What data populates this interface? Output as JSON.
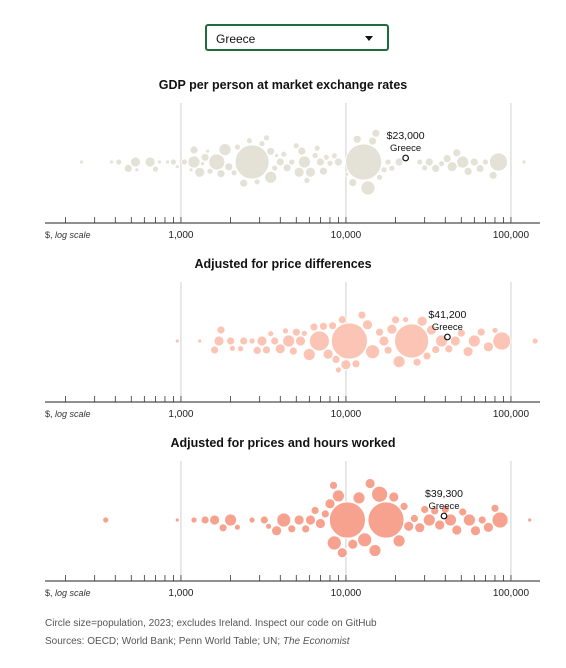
{
  "selector": {
    "value": "Greece"
  },
  "axis": {
    "unit_label": "$,",
    "scale_label": "log scale",
    "ticks": [
      "1,000",
      "10,000",
      "100,000"
    ]
  },
  "chart_data": [
    {
      "type": "scatter",
      "title": "GDP per person at market exchange rates",
      "scale": "log",
      "xlim": [
        150,
        150000
      ],
      "ticks": [
        1000,
        10000,
        100000
      ],
      "highlight": {
        "name": "Greece",
        "value": 23000,
        "label": "$23,000"
      },
      "color": "#e4e1d6",
      "bubbles": [
        [
          250,
          2
        ],
        [
          380,
          2
        ],
        [
          420,
          3
        ],
        [
          480,
          4
        ],
        [
          530,
          5
        ],
        [
          540,
          2
        ],
        [
          650,
          5
        ],
        [
          700,
          3
        ],
        [
          740,
          2
        ],
        [
          830,
          2
        ],
        [
          900,
          3
        ],
        [
          950,
          2
        ],
        [
          1050,
          3
        ],
        [
          1150,
          2
        ],
        [
          1200,
          4
        ],
        [
          1200,
          6
        ],
        [
          1300,
          5
        ],
        [
          1350,
          2
        ],
        [
          1400,
          4
        ],
        [
          1450,
          2
        ],
        [
          1500,
          3
        ],
        [
          1650,
          8
        ],
        [
          1750,
          4
        ],
        [
          1850,
          6
        ],
        [
          1950,
          4
        ],
        [
          2100,
          3
        ],
        [
          2200,
          3
        ],
        [
          2400,
          4
        ],
        [
          2700,
          17
        ],
        [
          2600,
          3
        ],
        [
          2900,
          3
        ],
        [
          3100,
          3
        ],
        [
          3300,
          3
        ],
        [
          3500,
          4
        ],
        [
          3500,
          6
        ],
        [
          3700,
          3
        ],
        [
          3800,
          2
        ],
        [
          4000,
          4
        ],
        [
          4200,
          3
        ],
        [
          4400,
          4
        ],
        [
          4700,
          3
        ],
        [
          5000,
          3
        ],
        [
          5200,
          5
        ],
        [
          5400,
          4
        ],
        [
          5600,
          6
        ],
        [
          5800,
          3
        ],
        [
          6100,
          5
        ],
        [
          6500,
          3
        ],
        [
          6700,
          3
        ],
        [
          7000,
          4
        ],
        [
          7300,
          4
        ],
        [
          7600,
          3
        ],
        [
          8000,
          3
        ],
        [
          8500,
          3
        ],
        [
          9000,
          4
        ],
        [
          10100,
          2
        ],
        [
          11000,
          4
        ],
        [
          11700,
          4
        ],
        [
          12800,
          18
        ],
        [
          13600,
          7
        ],
        [
          14500,
          4
        ],
        [
          15200,
          4
        ],
        [
          16000,
          3
        ],
        [
          17000,
          3
        ],
        [
          18000,
          3
        ],
        [
          19000,
          3
        ],
        [
          21000,
          4
        ],
        [
          28000,
          3
        ],
        [
          30000,
          3
        ],
        [
          32000,
          4
        ],
        [
          35000,
          4
        ],
        [
          38000,
          3
        ],
        [
          41000,
          4
        ],
        [
          44000,
          5
        ],
        [
          47000,
          4
        ],
        [
          51000,
          6
        ],
        [
          55000,
          4
        ],
        [
          60000,
          4
        ],
        [
          65000,
          4
        ],
        [
          70000,
          3
        ],
        [
          78000,
          4
        ],
        [
          84000,
          9
        ],
        [
          120000,
          2
        ]
      ]
    },
    {
      "type": "scatter",
      "title": "Adjusted for price differences",
      "scale": "log",
      "xlim": [
        150,
        150000
      ],
      "ticks": [
        1000,
        10000,
        100000
      ],
      "highlight": {
        "name": "Greece",
        "value": 41200,
        "label": "$41,200"
      },
      "color": "#fcc4b4",
      "bubbles": [
        [
          950,
          2
        ],
        [
          1300,
          2
        ],
        [
          1600,
          4
        ],
        [
          1700,
          5
        ],
        [
          1750,
          4
        ],
        [
          2000,
          4
        ],
        [
          2050,
          3
        ],
        [
          2300,
          3
        ],
        [
          2400,
          4
        ],
        [
          2700,
          3
        ],
        [
          2900,
          4
        ],
        [
          3100,
          5
        ],
        [
          3300,
          4
        ],
        [
          3500,
          3
        ],
        [
          3700,
          4
        ],
        [
          4000,
          5
        ],
        [
          4300,
          3
        ],
        [
          4500,
          6
        ],
        [
          4800,
          4
        ],
        [
          5000,
          4
        ],
        [
          5300,
          5
        ],
        [
          5600,
          3
        ],
        [
          6000,
          6
        ],
        [
          6400,
          4
        ],
        [
          6900,
          10
        ],
        [
          7300,
          4
        ],
        [
          7800,
          5
        ],
        [
          8300,
          4
        ],
        [
          8700,
          4
        ],
        [
          9000,
          3
        ],
        [
          9500,
          4
        ],
        [
          10000,
          5
        ],
        [
          10500,
          18
        ],
        [
          11500,
          4
        ],
        [
          12500,
          4
        ],
        [
          13500,
          5
        ],
        [
          14500,
          7
        ],
        [
          16000,
          4
        ],
        [
          17000,
          5
        ],
        [
          18000,
          4
        ],
        [
          19000,
          5
        ],
        [
          20000,
          4
        ],
        [
          21000,
          6
        ],
        [
          23000,
          3
        ],
        [
          25000,
          17
        ],
        [
          27000,
          4
        ],
        [
          29000,
          5
        ],
        [
          31000,
          4
        ],
        [
          33000,
          5
        ],
        [
          35000,
          4
        ],
        [
          38000,
          6
        ],
        [
          42000,
          4
        ],
        [
          46000,
          5
        ],
        [
          50000,
          4
        ],
        [
          55000,
          5
        ],
        [
          60000,
          6
        ],
        [
          66000,
          4
        ],
        [
          73000,
          5
        ],
        [
          80000,
          3
        ],
        [
          88000,
          9
        ],
        [
          140000,
          3
        ]
      ]
    },
    {
      "type": "scatter",
      "title": "Adjusted for prices and hours worked",
      "scale": "log",
      "xlim": [
        150,
        150000
      ],
      "ticks": [
        1000,
        10000,
        100000
      ],
      "highlight": {
        "name": "Greece",
        "value": 39300,
        "label": "$39,300"
      },
      "color": "#f7a28e",
      "bubbles": [
        [
          350,
          3
        ],
        [
          950,
          2
        ],
        [
          1200,
          3
        ],
        [
          1400,
          4
        ],
        [
          1600,
          5
        ],
        [
          1800,
          4
        ],
        [
          2000,
          6
        ],
        [
          2200,
          3
        ],
        [
          2700,
          3
        ],
        [
          3200,
          4
        ],
        [
          3400,
          3
        ],
        [
          3800,
          5
        ],
        [
          4200,
          7
        ],
        [
          4700,
          4
        ],
        [
          5200,
          5
        ],
        [
          5700,
          4
        ],
        [
          6100,
          5
        ],
        [
          6500,
          4
        ],
        [
          7000,
          5
        ],
        [
          7500,
          4
        ],
        [
          8000,
          5
        ],
        [
          8400,
          4
        ],
        [
          8500,
          7
        ],
        [
          9000,
          6
        ],
        [
          9500,
          5
        ],
        [
          10200,
          18
        ],
        [
          11000,
          5
        ],
        [
          12000,
          6
        ],
        [
          13000,
          7
        ],
        [
          14000,
          5
        ],
        [
          15000,
          6
        ],
        [
          16000,
          8
        ],
        [
          17500,
          18
        ],
        [
          19500,
          5
        ],
        [
          21000,
          6
        ],
        [
          22500,
          4
        ],
        [
          24000,
          5
        ],
        [
          26000,
          4
        ],
        [
          28000,
          5
        ],
        [
          30000,
          4
        ],
        [
          32000,
          6
        ],
        [
          34500,
          4
        ],
        [
          37000,
          5
        ],
        [
          40000,
          4
        ],
        [
          43000,
          6
        ],
        [
          47000,
          5
        ],
        [
          51000,
          4
        ],
        [
          56000,
          6
        ],
        [
          61000,
          5
        ],
        [
          67000,
          4
        ],
        [
          73000,
          5
        ],
        [
          80000,
          4
        ],
        [
          86000,
          8
        ],
        [
          130000,
          2
        ]
      ]
    }
  ],
  "footnote": {
    "line1": "Circle size=population, 2023; excludes Ireland. Inspect our code on GitHub",
    "line2_prefix": "Sources: OECD; World Bank; Penn World Table; UN; ",
    "line2_italic": "The Economist"
  }
}
